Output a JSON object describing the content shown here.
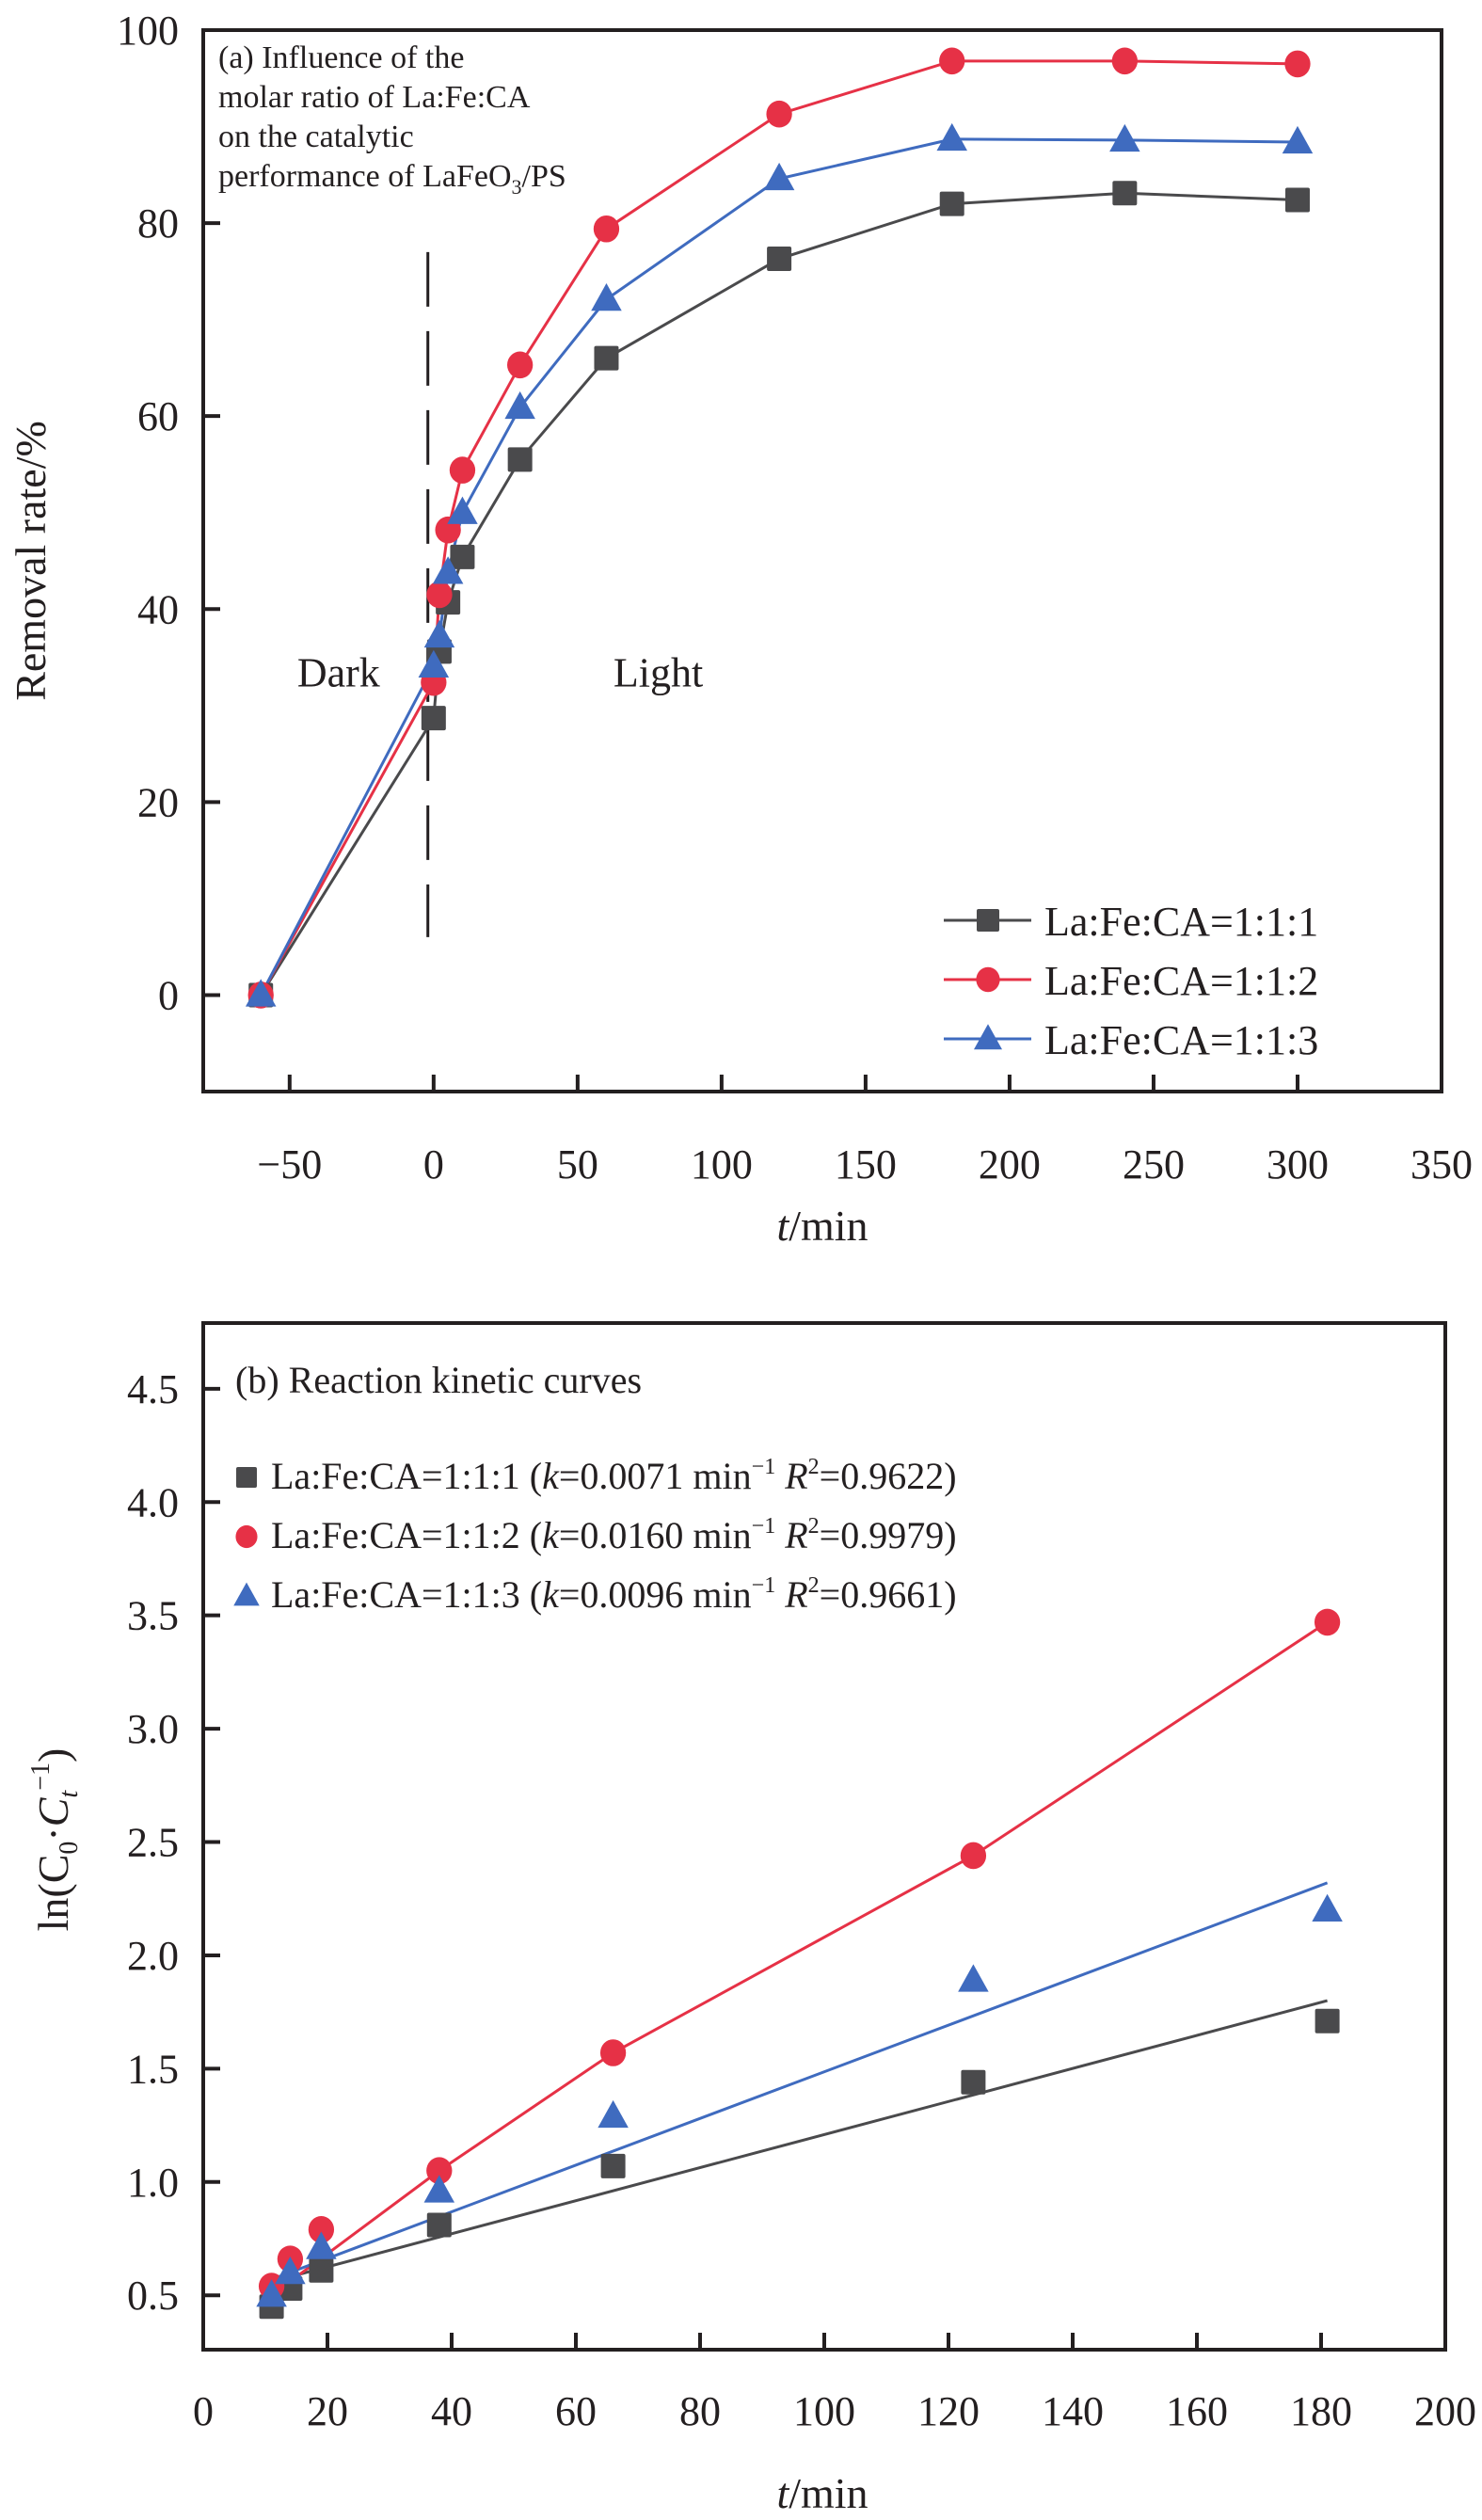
{
  "colors": {
    "series_1": "#4a4a4c",
    "series_2": "#e63146",
    "series_3": "#3f6bbf",
    "axis": "#231f20"
  },
  "chart_data": [
    {
      "id": "a",
      "type": "line",
      "title": "(a) Influence of the molar ratio of La:Fe:CA on the catalytic performance of LaFeO3/PS",
      "title_lines": [
        "(a) Influence of the",
        "molar ratio of La:Fe:CA",
        "on the catalytic",
        "performance of LaFeO",
        "3",
        "/PS"
      ],
      "xlabel_italic": "t",
      "xlabel_rest": "/min",
      "ylabel": "Removal rate/%",
      "xlim": [
        -80,
        350
      ],
      "ylim": [
        -10,
        100
      ],
      "xticks": [
        -50,
        0,
        50,
        100,
        150,
        200,
        250,
        300,
        350
      ],
      "xtick_labels": [
        "−50",
        "0",
        "50",
        "100",
        "150",
        "200",
        "250",
        "300",
        "350"
      ],
      "yticks": [
        0,
        20,
        40,
        60,
        80,
        100
      ],
      "ytick_labels": [
        "0",
        "20",
        "40",
        "60",
        "80",
        "100"
      ],
      "grid": false,
      "legend_position": "bottom-right",
      "annotations": [
        {
          "text": "Dark",
          "x": -33,
          "y": 32
        },
        {
          "text": "Light",
          "x": 78,
          "y": 32
        }
      ],
      "divider": {
        "x": -2,
        "style": "dashed",
        "y_range": [
          6,
          77
        ]
      },
      "x": [
        -60,
        0,
        2,
        5,
        10,
        30,
        60,
        120,
        180,
        240,
        300
      ],
      "series": [
        {
          "name": "La:Fe:CA=1:1:1",
          "marker": "square",
          "color": "#4a4a4c",
          "values": [
            0,
            28.7,
            35.6,
            40.7,
            45.4,
            55.5,
            66.0,
            76.3,
            82.0,
            83.1,
            82.4
          ]
        },
        {
          "name": "La:Fe:CA=1:1:2",
          "marker": "circle",
          "color": "#e63146",
          "values": [
            0,
            32.4,
            41.5,
            48.2,
            54.4,
            65.3,
            79.4,
            91.3,
            96.8,
            96.8,
            96.5
          ]
        },
        {
          "name": "La:Fe:CA=1:1:3",
          "marker": "triangle",
          "color": "#3f6bbf",
          "values": [
            0,
            34.1,
            37.2,
            43.8,
            50.0,
            60.9,
            72.1,
            84.6,
            88.7,
            88.6,
            88.4
          ]
        }
      ]
    },
    {
      "id": "b",
      "type": "scatter",
      "title": "(b) Reaction kinetic curves",
      "xlabel_italic": "t",
      "xlabel_rest": "/min",
      "ylabel": "ln(C0·Ct⁻¹)",
      "ylabel_parts": {
        "pre": "ln(C",
        "sub0": "0",
        "mid": "·",
        "C": "C",
        "subt": "t",
        "sup": "−1",
        "post": ")"
      },
      "xlim": [
        0,
        200
      ],
      "ylim": [
        0.26,
        4.79
      ],
      "xticks": [
        0,
        20,
        40,
        60,
        80,
        100,
        120,
        140,
        160,
        180,
        200
      ],
      "xtick_labels": [
        "0",
        "20",
        "40",
        "60",
        "80",
        "100",
        "120",
        "140",
        "160",
        "180",
        "200"
      ],
      "yticks": [
        0.5,
        1.0,
        1.5,
        2.0,
        2.5,
        3.0,
        3.5,
        4.0,
        4.5
      ],
      "ytick_labels": [
        "0.5",
        "1.0",
        "1.5",
        "2.0",
        "2.5",
        "3.0",
        "3.5",
        "4.0",
        "4.5"
      ],
      "grid": false,
      "legend_position": "top-left",
      "x": [
        11,
        14,
        19,
        38,
        66,
        124,
        181
      ],
      "series": [
        {
          "name": "La:Fe:CA=1:1:1",
          "marker": "square",
          "color": "#4a4a4c",
          "k": "0.0071",
          "r2": "0.9622",
          "values": [
            0.45,
            0.53,
            0.61,
            0.81,
            1.07,
            1.44,
            1.71
          ],
          "fit": {
            "x": [
              11,
              181
            ],
            "y": [
              0.56,
              1.8
            ]
          }
        },
        {
          "name": "La:Fe:CA=1:1:2",
          "marker": "circle",
          "color": "#e63146",
          "k": "0.0160",
          "r2": "0.9979",
          "values": [
            0.54,
            0.66,
            0.79,
            1.05,
            1.57,
            2.44,
            3.47
          ],
          "fit": {
            "x": [
              11,
              38,
              66,
              124,
              181
            ],
            "y": [
              0.5,
              1.05,
              1.57,
              2.44,
              3.47
            ]
          }
        },
        {
          "name": "La:Fe:CA=1:1:3",
          "marker": "triangle",
          "color": "#3f6bbf",
          "k": "0.0096",
          "r2": "0.9661",
          "values": [
            0.5,
            0.6,
            0.71,
            0.96,
            1.29,
            1.89,
            2.2
          ],
          "fit": {
            "x": [
              11,
              181
            ],
            "y": [
              0.57,
              2.32
            ]
          }
        }
      ],
      "legend_entries": [
        {
          "pre": "La:Fe:CA=1:1:1 (",
          "k_label": "k",
          "mid": "=0.0071 min",
          "sup": "−1",
          "r_label": " R",
          "r_sup": "2",
          "post": "=0.9622)"
        },
        {
          "pre": "La:Fe:CA=1:1:2 (",
          "k_label": "k",
          "mid": "=0.0160 min",
          "sup": "−1",
          "r_label": " R",
          "r_sup": "2",
          "post": "=0.9979)"
        },
        {
          "pre": "La:Fe:CA=1:1:3 (",
          "k_label": "k",
          "mid": "=0.0096 min",
          "sup": "−1",
          "r_label": " R",
          "r_sup": "2",
          "post": "=0.9661)"
        }
      ]
    }
  ]
}
